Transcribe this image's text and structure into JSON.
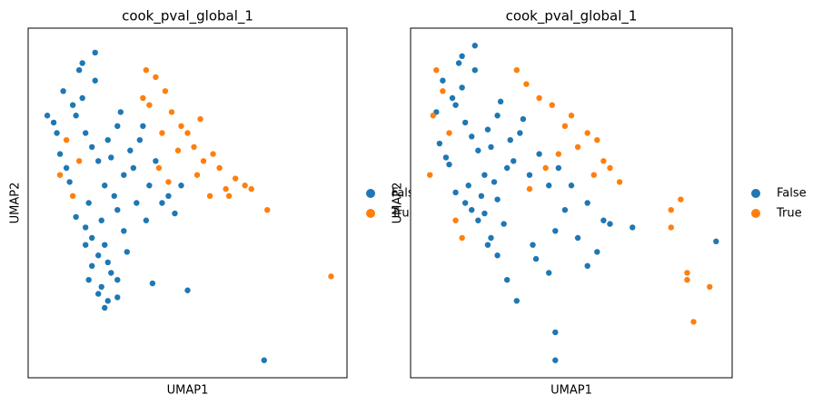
{
  "chart_data": [
    {
      "type": "scatter",
      "title": "cook_pval_global_1",
      "xlabel": "UMAP1",
      "ylabel": "UMAP2",
      "xlim": [
        0,
        100
      ],
      "ylim": [
        0,
        100
      ],
      "legend": "right",
      "series": [
        {
          "name": "False",
          "color": "#1f77b4",
          "x": [
            20,
            18,
            22,
            15,
            25,
            12,
            28,
            10,
            30,
            17,
            21,
            24,
            14,
            19,
            26,
            8,
            32,
            16,
            23,
            27,
            11,
            29,
            13,
            35,
            33,
            38,
            40,
            42,
            36,
            20,
            22,
            18,
            24,
            26,
            15,
            30,
            28,
            17,
            21,
            25,
            19,
            23,
            9,
            6,
            34,
            37,
            31,
            44,
            46,
            48,
            22,
            25,
            28,
            20,
            24,
            18,
            39,
            50,
            28,
            74
          ],
          "y": [
            66,
            70,
            62,
            75,
            68,
            60,
            72,
            64,
            58,
            80,
            85,
            55,
            78,
            50,
            63,
            73,
            65,
            88,
            45,
            52,
            82,
            76,
            56,
            68,
            60,
            55,
            62,
            50,
            72,
            40,
            35,
            43,
            38,
            30,
            46,
            42,
            48,
            90,
            93,
            33,
            28,
            26,
            70,
            75,
            50,
            45,
            36,
            52,
            47,
            55,
            24,
            22,
            28,
            32,
            20,
            38,
            27,
            25,
            23,
            5
          ]
        },
        {
          "name": "True",
          "color": "#ff7f0e",
          "x": [
            37,
            40,
            43,
            45,
            48,
            50,
            52,
            55,
            58,
            60,
            62,
            65,
            68,
            70,
            75,
            95,
            38,
            42,
            47,
            53,
            57,
            63,
            12,
            10,
            14,
            16,
            44,
            36,
            41,
            54
          ],
          "y": [
            88,
            86,
            82,
            76,
            72,
            70,
            66,
            62,
            64,
            60,
            54,
            57,
            55,
            54,
            48,
            29,
            78,
            70,
            65,
            58,
            52,
            52,
            68,
            58,
            52,
            62,
            56,
            80,
            60,
            74
          ]
        }
      ]
    },
    {
      "type": "scatter",
      "title": "cook_pval_global_1",
      "xlabel": "UMAP1",
      "ylabel": "UMAP2",
      "xlim": [
        0,
        100
      ],
      "ylim": [
        0,
        100
      ],
      "legend": "right",
      "series": [
        {
          "name": "False",
          "color": "#1f77b4",
          "x": [
            19,
            17,
            21,
            14,
            24,
            11,
            27,
            9,
            30,
            16,
            20,
            23,
            13,
            18,
            25,
            8,
            31,
            15,
            22,
            26,
            10,
            28,
            12,
            34,
            32,
            37,
            40,
            43,
            35,
            19,
            21,
            17,
            23,
            25,
            14,
            29,
            27,
            16,
            20,
            24,
            46,
            50,
            55,
            60,
            45,
            38,
            52,
            58,
            62,
            48,
            27,
            43,
            45,
            45,
            69,
            95,
            33,
            39,
            30,
            55
          ],
          "y": [
            69,
            73,
            65,
            78,
            71,
            63,
            75,
            67,
            60,
            83,
            88,
            58,
            80,
            55,
            66,
            76,
            68,
            90,
            52,
            56,
            85,
            79,
            61,
            70,
            62,
            58,
            64,
            55,
            74,
            48,
            45,
            50,
            47,
            40,
            53,
            44,
            51,
            92,
            95,
            38,
            60,
            55,
            50,
            45,
            42,
            38,
            40,
            36,
            44,
            48,
            35,
            30,
            13,
            5,
            43,
            39,
            22,
            34,
            28,
            32
          ]
        },
        {
          "name": "True",
          "color": "#ff7f0e",
          "x": [
            8,
            10,
            7,
            12,
            33,
            36,
            40,
            44,
            48,
            50,
            55,
            52,
            58,
            60,
            62,
            65,
            57,
            46,
            42,
            37,
            14,
            16,
            81,
            84,
            81,
            86,
            86,
            93,
            88,
            6
          ],
          "y": [
            88,
            82,
            75,
            70,
            88,
            84,
            80,
            78,
            72,
            75,
            70,
            66,
            68,
            62,
            60,
            56,
            58,
            64,
            60,
            54,
            45,
            40,
            48,
            51,
            43,
            30,
            28,
            26,
            16,
            58
          ]
        }
      ]
    }
  ]
}
